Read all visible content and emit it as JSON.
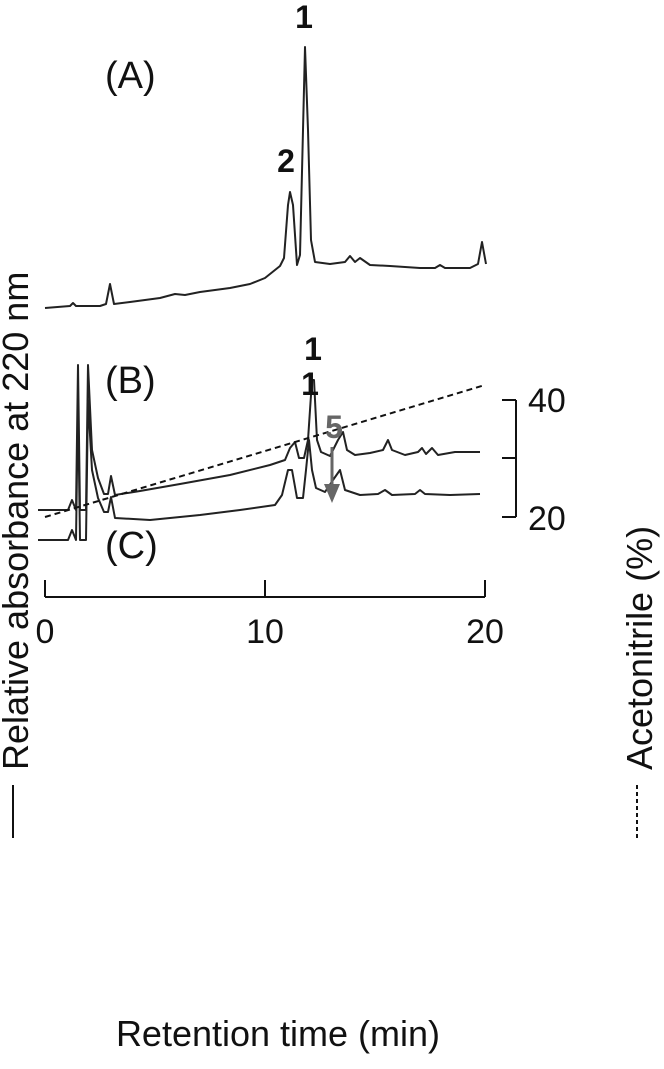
{
  "chart_data": {
    "type": "line",
    "xlabel": "Retention time (min)",
    "ylabel": "Relative absorbance at 220 nm",
    "y2label": "Acetonitrile (%)",
    "xlim": [
      0,
      20
    ],
    "x_ticks": [
      0,
      10,
      20
    ],
    "y2_ticks": [
      20,
      40
    ],
    "y2lim": [
      20,
      40
    ],
    "gradient": {
      "x": [
        0,
        20
      ],
      "acetonitrile": [
        20,
        40
      ]
    },
    "panels": [
      {
        "label": "(A)",
        "peaks": [
          {
            "label": "1",
            "x": 11.9
          },
          {
            "label": "2",
            "x": 11.2
          }
        ]
      },
      {
        "label": "(B)",
        "peaks": [
          {
            "label": "1",
            "x": 12.2
          },
          {
            "label": "5",
            "x": 12.9,
            "arrow": true,
            "color": "#666666"
          }
        ]
      },
      {
        "label": "(C)",
        "peaks": [
          {
            "label": "1",
            "x": 11.9
          }
        ]
      }
    ]
  }
}
